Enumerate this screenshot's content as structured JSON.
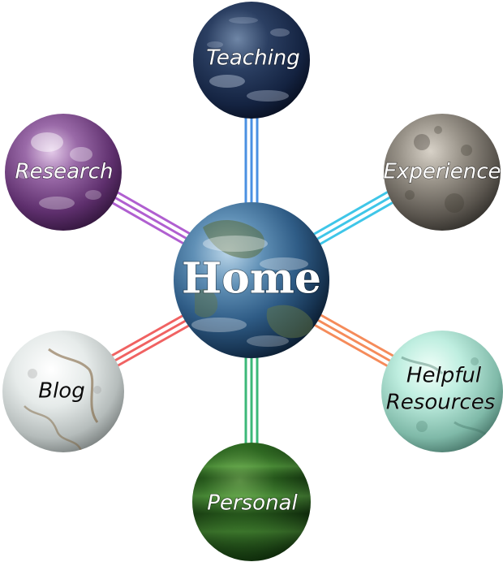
{
  "home": {
    "label": "Home"
  },
  "nodes": {
    "teaching": {
      "label": "Teaching"
    },
    "research": {
      "label": "Research"
    },
    "experience": {
      "label": "Experience"
    },
    "blog": {
      "label": "Blog"
    },
    "helpful": {
      "label_line1": "Helpful",
      "label_line2": "Resources"
    },
    "personal": {
      "label": "Personal"
    }
  },
  "colors": {
    "teaching_connector": "#4a90e2",
    "research_connector": "#b05fd0",
    "experience_connector": "#3fc6e8",
    "blog_connector": "#f06262",
    "helpful_connector": "#f58b5a",
    "personal_connector": "#3cb878"
  }
}
